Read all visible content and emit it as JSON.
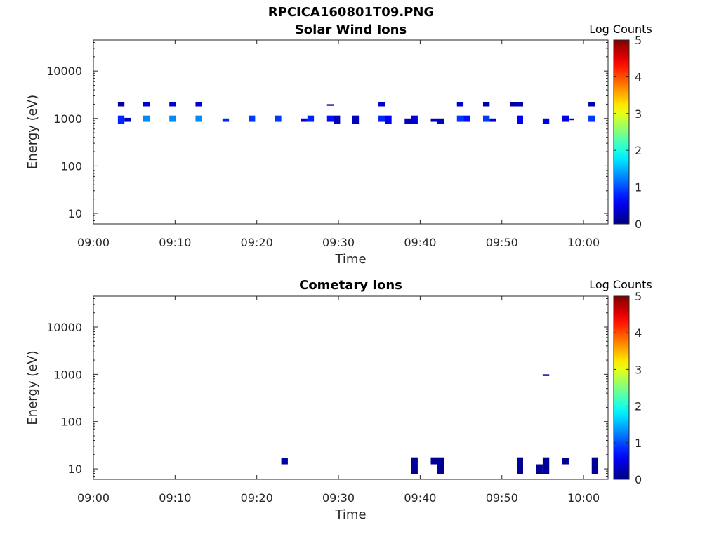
{
  "figure": {
    "title": "RPCICA160801T09.PNG"
  },
  "chart_data": [
    {
      "type": "heatmap",
      "title": "Solar Wind Ions",
      "xlabel": "Time",
      "ylabel": "Energy (eV)",
      "x_ticks": [
        "09:00",
        "09:10",
        "09:20",
        "09:30",
        "09:40",
        "09:50",
        "10:00"
      ],
      "x_range_minutes": [
        0,
        63
      ],
      "y_scale": "log",
      "y_ticks": [
        "10",
        "100",
        "1000",
        "10000"
      ],
      "y_range": [
        6,
        45000
      ],
      "colorbar": {
        "label": "Log Counts",
        "range": [
          0,
          5
        ],
        "ticks": [
          "0",
          "1",
          "2",
          "3",
          "4",
          "5"
        ],
        "colormap": "jet"
      },
      "grid": false,
      "cells": [
        {
          "t0": 3.0,
          "t1": 3.8,
          "e0": 1800,
          "e1": 2200,
          "v": 0.2
        },
        {
          "t0": 6.1,
          "t1": 6.9,
          "e0": 1800,
          "e1": 2200,
          "v": 0.4
        },
        {
          "t0": 9.3,
          "t1": 10.1,
          "e0": 1800,
          "e1": 2200,
          "v": 0.4
        },
        {
          "t0": 12.5,
          "t1": 13.3,
          "e0": 1800,
          "e1": 2200,
          "v": 0.4
        },
        {
          "t0": 28.6,
          "t1": 29.4,
          "e0": 1850,
          "e1": 2000,
          "v": 0.2
        },
        {
          "t0": 34.9,
          "t1": 35.7,
          "e0": 1800,
          "e1": 2200,
          "v": 0.4
        },
        {
          "t0": 44.5,
          "t1": 45.3,
          "e0": 1800,
          "e1": 2200,
          "v": 0.4
        },
        {
          "t0": 47.7,
          "t1": 48.5,
          "e0": 1800,
          "e1": 2200,
          "v": 0.2
        },
        {
          "t0": 51.0,
          "t1": 52.6,
          "e0": 1800,
          "e1": 2200,
          "v": 0.2
        },
        {
          "t0": 60.6,
          "t1": 61.4,
          "e0": 1800,
          "e1": 2200,
          "v": 0.2
        },
        {
          "t0": 3.0,
          "t1": 3.8,
          "e0": 780,
          "e1": 1150,
          "v": 0.8
        },
        {
          "t0": 3.8,
          "t1": 4.6,
          "e0": 850,
          "e1": 1030,
          "v": 0.3
        },
        {
          "t0": 6.1,
          "t1": 6.9,
          "e0": 850,
          "e1": 1150,
          "v": 1.3
        },
        {
          "t0": 9.3,
          "t1": 10.1,
          "e0": 850,
          "e1": 1150,
          "v": 1.3
        },
        {
          "t0": 12.5,
          "t1": 13.3,
          "e0": 850,
          "e1": 1150,
          "v": 1.3
        },
        {
          "t0": 15.8,
          "t1": 16.6,
          "e0": 850,
          "e1": 1000,
          "v": 0.8
        },
        {
          "t0": 19.0,
          "t1": 19.8,
          "e0": 850,
          "e1": 1150,
          "v": 0.9
        },
        {
          "t0": 22.2,
          "t1": 23.0,
          "e0": 850,
          "e1": 1150,
          "v": 0.9
        },
        {
          "t0": 25.4,
          "t1": 26.2,
          "e0": 850,
          "e1": 1000,
          "v": 0.6
        },
        {
          "t0": 26.2,
          "t1": 27.0,
          "e0": 850,
          "e1": 1150,
          "v": 0.8
        },
        {
          "t0": 28.6,
          "t1": 29.4,
          "e0": 850,
          "e1": 1150,
          "v": 0.7
        },
        {
          "t0": 29.4,
          "t1": 30.2,
          "e0": 780,
          "e1": 1150,
          "v": 0.3
        },
        {
          "t0": 31.7,
          "t1": 32.5,
          "e0": 780,
          "e1": 1150,
          "v": 0.3
        },
        {
          "t0": 34.9,
          "t1": 35.7,
          "e0": 850,
          "e1": 1150,
          "v": 0.8
        },
        {
          "t0": 35.7,
          "t1": 36.5,
          "e0": 780,
          "e1": 1150,
          "v": 0.6
        },
        {
          "t0": 38.1,
          "t1": 38.9,
          "e0": 780,
          "e1": 1000,
          "v": 0.3
        },
        {
          "t0": 38.9,
          "t1": 39.7,
          "e0": 780,
          "e1": 1150,
          "v": 0.4
        },
        {
          "t0": 41.3,
          "t1": 42.1,
          "e0": 850,
          "e1": 1000,
          "v": 0.3
        },
        {
          "t0": 42.1,
          "t1": 42.9,
          "e0": 780,
          "e1": 1000,
          "v": 0.3
        },
        {
          "t0": 44.5,
          "t1": 45.3,
          "e0": 850,
          "e1": 1150,
          "v": 0.9
        },
        {
          "t0": 45.3,
          "t1": 46.1,
          "e0": 850,
          "e1": 1150,
          "v": 0.7
        },
        {
          "t0": 47.7,
          "t1": 48.5,
          "e0": 850,
          "e1": 1150,
          "v": 0.9
        },
        {
          "t0": 48.5,
          "t1": 49.3,
          "e0": 850,
          "e1": 1000,
          "v": 0.4
        },
        {
          "t0": 51.9,
          "t1": 52.6,
          "e0": 780,
          "e1": 1150,
          "v": 0.6
        },
        {
          "t0": 55.0,
          "t1": 55.8,
          "e0": 780,
          "e1": 1000,
          "v": 0.5
        },
        {
          "t0": 57.4,
          "t1": 58.2,
          "e0": 850,
          "e1": 1150,
          "v": 0.5
        },
        {
          "t0": 58.3,
          "t1": 58.8,
          "e0": 920,
          "e1": 1000,
          "v": 0.3
        },
        {
          "t0": 60.6,
          "t1": 61.4,
          "e0": 850,
          "e1": 1150,
          "v": 0.9
        }
      ]
    },
    {
      "type": "heatmap",
      "title": "Cometary Ions",
      "xlabel": "Time",
      "ylabel": "Energy (eV)",
      "x_ticks": [
        "09:00",
        "09:10",
        "09:20",
        "09:30",
        "09:40",
        "09:50",
        "10:00"
      ],
      "x_range_minutes": [
        0,
        63
      ],
      "y_scale": "log",
      "y_ticks": [
        "10",
        "100",
        "1000",
        "10000"
      ],
      "y_range": [
        6,
        45000
      ],
      "colorbar": {
        "label": "Log Counts",
        "range": [
          0,
          5
        ],
        "ticks": [
          "0",
          "1",
          "2",
          "3",
          "4",
          "5"
        ],
        "colormap": "jet"
      },
      "grid": false,
      "cells": [
        {
          "t0": 23.0,
          "t1": 23.8,
          "e0": 12.5,
          "e1": 17,
          "v": 0.15
        },
        {
          "t0": 38.9,
          "t1": 39.7,
          "e0": 7.8,
          "e1": 17.5,
          "v": 0.1
        },
        {
          "t0": 41.3,
          "t1": 42.1,
          "e0": 12.5,
          "e1": 17.5,
          "v": 0.1
        },
        {
          "t0": 42.1,
          "t1": 42.9,
          "e0": 7.8,
          "e1": 17.5,
          "v": 0.1
        },
        {
          "t0": 51.9,
          "t1": 52.6,
          "e0": 7.8,
          "e1": 17.5,
          "v": 0.1
        },
        {
          "t0": 54.2,
          "t1": 55.0,
          "e0": 7.8,
          "e1": 12.5,
          "v": 0.1
        },
        {
          "t0": 55.0,
          "t1": 55.8,
          "e0": 7.8,
          "e1": 17.5,
          "v": 0.1
        },
        {
          "t0": 55.0,
          "t1": 55.8,
          "e0": 920,
          "e1": 1000,
          "v": 0.1
        },
        {
          "t0": 57.4,
          "t1": 58.2,
          "e0": 12.5,
          "e1": 17,
          "v": 0.1
        },
        {
          "t0": 61.0,
          "t1": 61.8,
          "e0": 7.8,
          "e1": 17.5,
          "v": 0.1
        }
      ]
    }
  ]
}
